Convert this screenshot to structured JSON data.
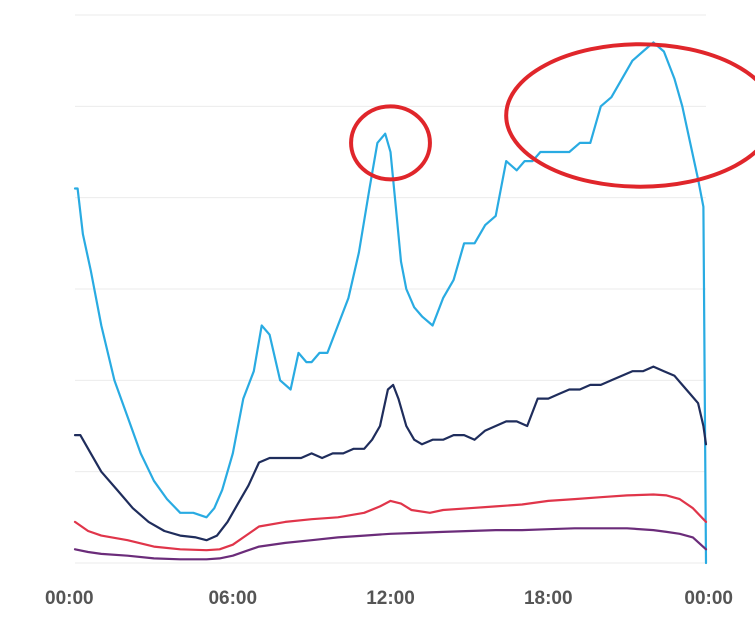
{
  "chart_data": {
    "type": "line",
    "title": "",
    "xlabel": "",
    "ylabel": "",
    "x_tick_labels": [
      "00:00",
      "06:00",
      "12:00",
      "18:00",
      "00:00"
    ],
    "x_ticks_hours": [
      0,
      6,
      12,
      18,
      24
    ],
    "xlim_hours": [
      0,
      24
    ],
    "ylim": [
      0,
      6
    ],
    "grid": "horizontal",
    "legend": "none",
    "series": [
      {
        "color": "#29abe2",
        "x": [
          0,
          0.1,
          0.3,
          0.6,
          1,
          1.5,
          2,
          2.5,
          3,
          3.5,
          4,
          4.5,
          5,
          5.3,
          5.6,
          6,
          6.4,
          6.8,
          7.1,
          7.4,
          7.8,
          8.2,
          8.5,
          8.8,
          9.0,
          9.3,
          9.6,
          10,
          10.4,
          10.8,
          11.2,
          11.5,
          11.8,
          12.0,
          12.2,
          12.4,
          12.6,
          12.9,
          13.2,
          13.6,
          14,
          14.4,
          14.8,
          15.2,
          15.6,
          16,
          16.4,
          16.8,
          17.1,
          17.4,
          17.7,
          18.0,
          18.4,
          18.8,
          19.2,
          19.6,
          20,
          20.4,
          20.8,
          21.2,
          21.6,
          22,
          22.4,
          22.8,
          23.1,
          23.4,
          23.7,
          23.9,
          24
        ],
        "values": [
          4.1,
          4.1,
          3.6,
          3.2,
          2.6,
          2.0,
          1.6,
          1.2,
          0.9,
          0.7,
          0.55,
          0.55,
          0.5,
          0.6,
          0.8,
          1.2,
          1.8,
          2.1,
          2.6,
          2.5,
          2.0,
          1.9,
          2.3,
          2.2,
          2.2,
          2.3,
          2.3,
          2.6,
          2.9,
          3.4,
          4.1,
          4.6,
          4.7,
          4.5,
          3.9,
          3.3,
          3.0,
          2.8,
          2.7,
          2.6,
          2.9,
          3.1,
          3.5,
          3.5,
          3.7,
          3.8,
          4.4,
          4.3,
          4.4,
          4.4,
          4.5,
          4.5,
          4.5,
          4.5,
          4.6,
          4.6,
          5.0,
          5.1,
          5.3,
          5.5,
          5.6,
          5.7,
          5.6,
          5.3,
          5.0,
          4.6,
          4.2,
          3.9,
          0.0
        ]
      },
      {
        "color": "#1f2d5c",
        "x": [
          0,
          0.2,
          0.6,
          1,
          1.6,
          2.2,
          2.8,
          3.4,
          4,
          4.6,
          5,
          5.4,
          5.8,
          6.2,
          6.6,
          7,
          7.4,
          7.8,
          8.2,
          8.6,
          9,
          9.4,
          9.8,
          10.2,
          10.6,
          11,
          11.3,
          11.6,
          11.9,
          12.1,
          12.3,
          12.6,
          12.9,
          13.2,
          13.6,
          14,
          14.4,
          14.8,
          15.2,
          15.6,
          16,
          16.4,
          16.8,
          17.2,
          17.6,
          18,
          18.4,
          18.8,
          19.2,
          19.6,
          20,
          20.4,
          20.8,
          21.2,
          21.6,
          22,
          22.4,
          22.8,
          23.1,
          23.4,
          23.7,
          23.9,
          24
        ],
        "values": [
          1.4,
          1.4,
          1.2,
          1.0,
          0.8,
          0.6,
          0.45,
          0.35,
          0.3,
          0.28,
          0.25,
          0.3,
          0.45,
          0.65,
          0.85,
          1.1,
          1.15,
          1.15,
          1.15,
          1.15,
          1.2,
          1.15,
          1.2,
          1.2,
          1.25,
          1.25,
          1.35,
          1.5,
          1.9,
          1.95,
          1.8,
          1.5,
          1.35,
          1.3,
          1.35,
          1.35,
          1.4,
          1.4,
          1.35,
          1.45,
          1.5,
          1.55,
          1.55,
          1.5,
          1.8,
          1.8,
          1.85,
          1.9,
          1.9,
          1.95,
          1.95,
          2.0,
          2.05,
          2.1,
          2.1,
          2.15,
          2.1,
          2.05,
          1.95,
          1.85,
          1.75,
          1.5,
          1.3
        ]
      },
      {
        "color": "#e0354a",
        "x": [
          0,
          0.5,
          1,
          2,
          3,
          4,
          5,
          5.5,
          6,
          6.5,
          7,
          8,
          9,
          10,
          11,
          11.6,
          12,
          12.4,
          12.8,
          13.5,
          14,
          15,
          16,
          17,
          18,
          19,
          20,
          21,
          22,
          22.5,
          23,
          23.5,
          24
        ],
        "values": [
          0.45,
          0.35,
          0.3,
          0.25,
          0.18,
          0.15,
          0.14,
          0.15,
          0.2,
          0.3,
          0.4,
          0.45,
          0.48,
          0.5,
          0.55,
          0.62,
          0.68,
          0.65,
          0.58,
          0.55,
          0.58,
          0.6,
          0.62,
          0.64,
          0.68,
          0.7,
          0.72,
          0.74,
          0.75,
          0.74,
          0.7,
          0.6,
          0.45
        ]
      },
      {
        "color": "#6b2c7a",
        "x": [
          0,
          0.5,
          1,
          2,
          3,
          4,
          5,
          5.5,
          6,
          6.5,
          7,
          8,
          9,
          10,
          11,
          12,
          13,
          14,
          15,
          16,
          17,
          18,
          19,
          20,
          21,
          22,
          22.5,
          23,
          23.5,
          24
        ],
        "values": [
          0.15,
          0.12,
          0.1,
          0.08,
          0.05,
          0.04,
          0.04,
          0.05,
          0.08,
          0.13,
          0.18,
          0.22,
          0.25,
          0.28,
          0.3,
          0.32,
          0.33,
          0.34,
          0.35,
          0.36,
          0.36,
          0.37,
          0.38,
          0.38,
          0.38,
          0.36,
          0.34,
          0.32,
          0.28,
          0.15
        ]
      }
    ],
    "annotations": [
      {
        "type": "ellipse",
        "color": "#e0262b",
        "center_x_hours": 12.0,
        "center_y": 4.6,
        "radius_x_hours": 1.5,
        "radius_y": 0.4
      },
      {
        "type": "ellipse",
        "color": "#e0262b",
        "center_x_hours": 21.5,
        "center_y": 4.9,
        "radius_x_hours": 5.1,
        "radius_y": 0.78
      }
    ]
  }
}
